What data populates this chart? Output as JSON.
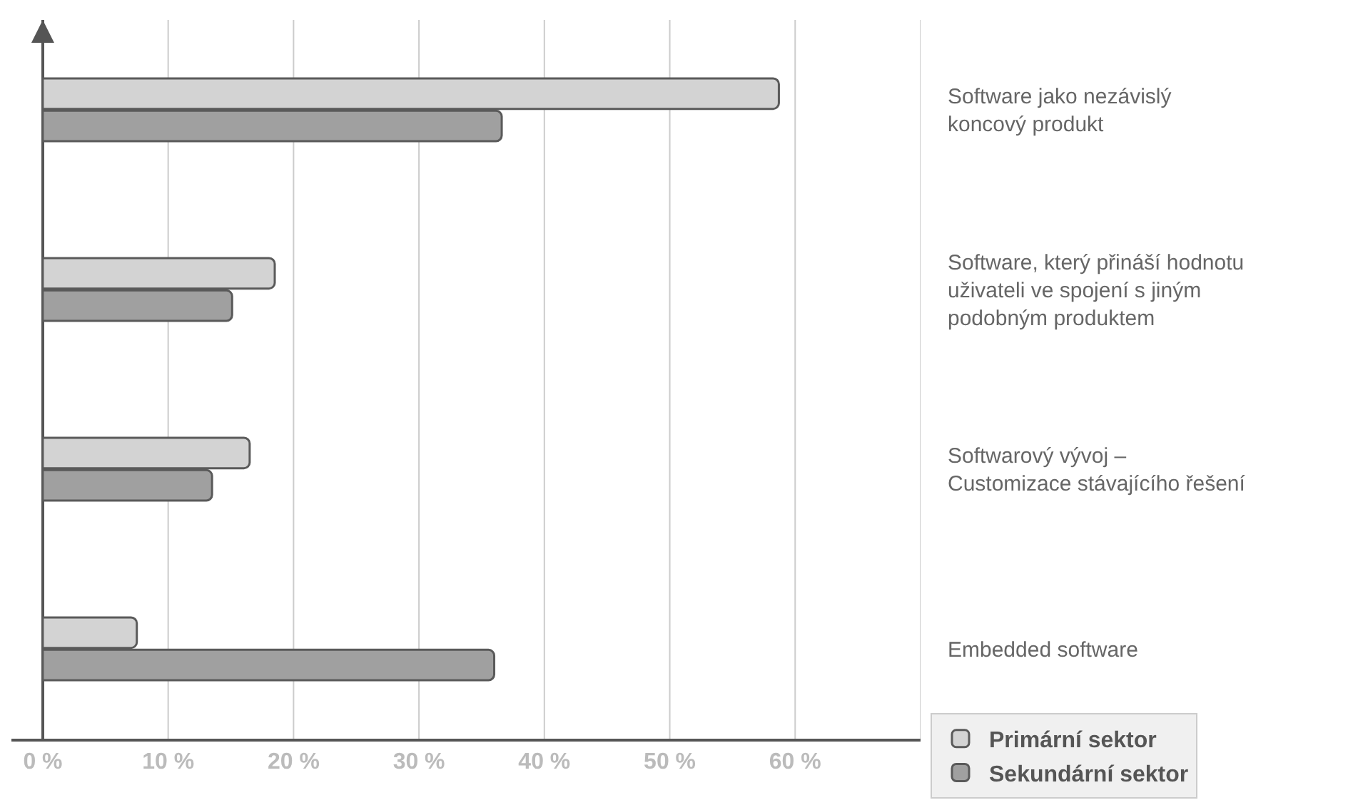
{
  "chart_data": {
    "type": "bar",
    "orientation": "horizontal",
    "categories": [
      "Software jako nezávislý\nkoncový produkt",
      "Software, který přináší hodnotu\nuživateli ve spojení s jiným\npodobným produktem",
      "Softwarový vývoj –\nCustomizace stávajícího řešení",
      "Embedded software"
    ],
    "series": [
      {
        "name": "Primární sektor",
        "color": "#d3d3d3",
        "values": [
          58.7,
          18.5,
          16.5,
          7.5
        ]
      },
      {
        "name": "Sekundární sektor",
        "color": "#a0a0a0",
        "values": [
          36.6,
          15.1,
          13.5,
          36.0
        ]
      }
    ],
    "xlim": [
      -2.5,
      70
    ],
    "xticks": [
      {
        "value": 0,
        "label": "0 %"
      },
      {
        "value": 10,
        "label": "10 %"
      },
      {
        "value": 20,
        "label": "20 %"
      },
      {
        "value": 30,
        "label": "30 %"
      },
      {
        "value": 40,
        "label": "40 %"
      },
      {
        "value": 50,
        "label": "50 %"
      },
      {
        "value": 60,
        "label": "60 %"
      },
      {
        "value": 70,
        "label": null
      }
    ],
    "grid": "x",
    "legend": "bottom right"
  }
}
